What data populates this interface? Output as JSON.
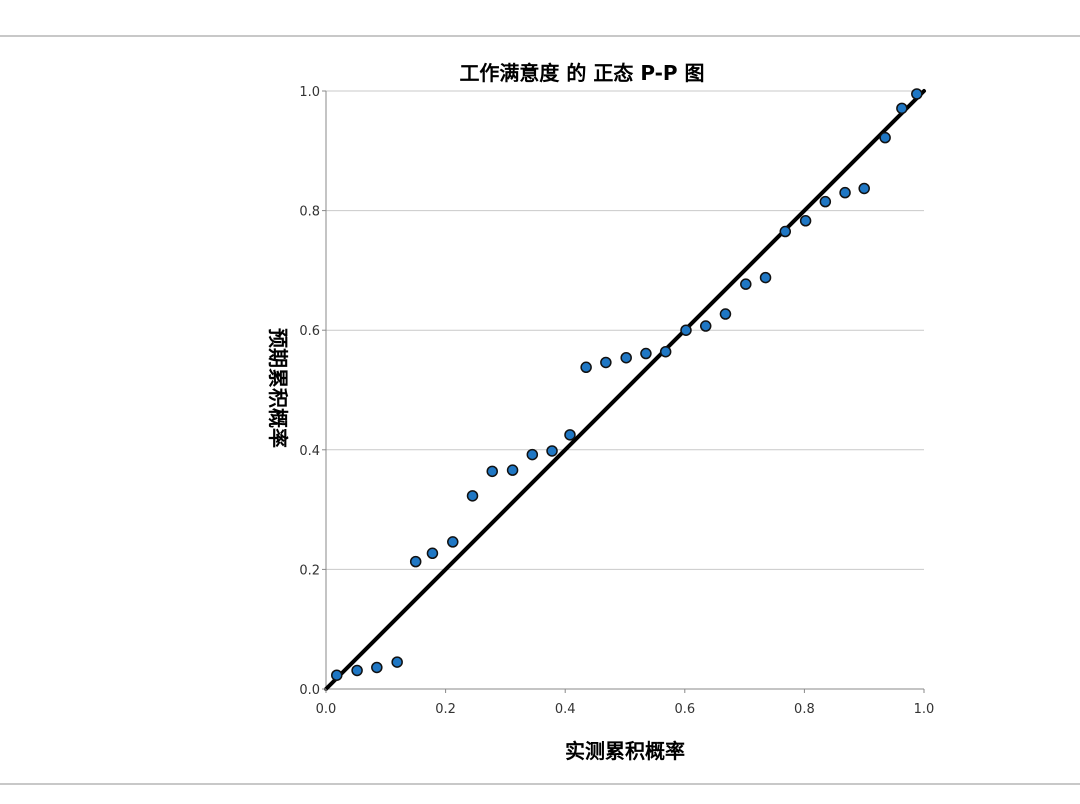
{
  "chart_data": {
    "type": "scatter",
    "title": "工作满意度 的 正态 P-P 图",
    "xlabel": "实测累积概率",
    "ylabel": "预期累积概率",
    "xlim": [
      0,
      1
    ],
    "ylim": [
      0,
      1
    ],
    "xticks": [
      "0.0",
      "0.2",
      "0.4",
      "0.6",
      "0.8",
      "1.0"
    ],
    "yticks": [
      "0.0",
      "0.2",
      "0.4",
      "0.6",
      "0.8",
      "1.0"
    ],
    "grid": "horizontal",
    "reference_line": {
      "from": [
        0,
        0
      ],
      "to": [
        1,
        1
      ]
    },
    "marker_color": "#1f77c4",
    "points": [
      {
        "x": 0.018,
        "y": 0.023
      },
      {
        "x": 0.052,
        "y": 0.031
      },
      {
        "x": 0.085,
        "y": 0.036
      },
      {
        "x": 0.119,
        "y": 0.045
      },
      {
        "x": 0.15,
        "y": 0.213
      },
      {
        "x": 0.178,
        "y": 0.227
      },
      {
        "x": 0.212,
        "y": 0.246
      },
      {
        "x": 0.245,
        "y": 0.323
      },
      {
        "x": 0.278,
        "y": 0.364
      },
      {
        "x": 0.312,
        "y": 0.366
      },
      {
        "x": 0.345,
        "y": 0.392
      },
      {
        "x": 0.378,
        "y": 0.398
      },
      {
        "x": 0.408,
        "y": 0.425
      },
      {
        "x": 0.435,
        "y": 0.538
      },
      {
        "x": 0.468,
        "y": 0.546
      },
      {
        "x": 0.502,
        "y": 0.554
      },
      {
        "x": 0.535,
        "y": 0.561
      },
      {
        "x": 0.568,
        "y": 0.564
      },
      {
        "x": 0.602,
        "y": 0.6
      },
      {
        "x": 0.635,
        "y": 0.607
      },
      {
        "x": 0.668,
        "y": 0.627
      },
      {
        "x": 0.702,
        "y": 0.677
      },
      {
        "x": 0.735,
        "y": 0.688
      },
      {
        "x": 0.768,
        "y": 0.765
      },
      {
        "x": 0.802,
        "y": 0.783
      },
      {
        "x": 0.835,
        "y": 0.815
      },
      {
        "x": 0.868,
        "y": 0.83
      },
      {
        "x": 0.9,
        "y": 0.837
      },
      {
        "x": 0.935,
        "y": 0.922
      },
      {
        "x": 0.963,
        "y": 0.971
      },
      {
        "x": 0.988,
        "y": 0.995
      }
    ]
  }
}
